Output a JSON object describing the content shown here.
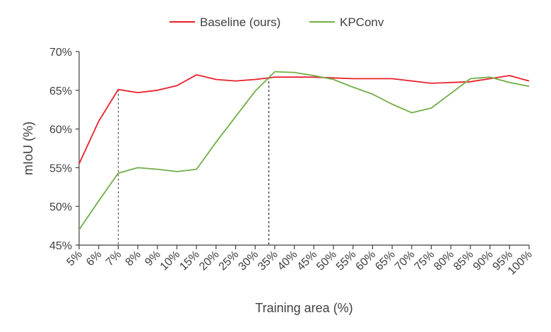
{
  "chart_data": {
    "type": "line",
    "title": "",
    "xlabel": "Training area (%)",
    "ylabel": "mIoU (%)",
    "categories": [
      "5%",
      "6%",
      "7%",
      "8%",
      "9%",
      "10%",
      "15%",
      "20%",
      "25%",
      "30%",
      "35%",
      "40%",
      "45%",
      "50%",
      "55%",
      "60%",
      "65%",
      "70%",
      "75%",
      "80%",
      "85%",
      "90%",
      "95%",
      "100%"
    ],
    "yticks": [
      "45%",
      "50%",
      "55%",
      "60%",
      "65%",
      "70%"
    ],
    "yrange": [
      45,
      70
    ],
    "grid": false,
    "legend_position": "top-center",
    "series": [
      {
        "name": "Baseline (ours)",
        "color": "#e8202a",
        "values": [
          55.5,
          61.0,
          65.1,
          64.7,
          65.0,
          65.6,
          67.0,
          66.4,
          66.2,
          66.4,
          66.7,
          66.7,
          66.7,
          66.6,
          66.5,
          66.5,
          66.5,
          66.2,
          65.9,
          66.0,
          66.1,
          66.5,
          66.9,
          66.2
        ]
      },
      {
        "name": "KPConv",
        "color": "#70ad47",
        "values": [
          47.0,
          50.7,
          54.3,
          55.0,
          54.8,
          54.5,
          54.8,
          58.3,
          61.6,
          64.9,
          67.4,
          67.3,
          66.9,
          66.4,
          65.4,
          64.5,
          63.2,
          62.1,
          62.7,
          64.6,
          66.5,
          66.7,
          66.0,
          65.5
        ]
      }
    ],
    "reference_lines": [
      {
        "category": "7%",
        "style": "dashed",
        "color": "#404040"
      },
      {
        "x_between": [
          "30%",
          "35%"
        ],
        "style": "dashed",
        "color": "#000000"
      }
    ]
  }
}
